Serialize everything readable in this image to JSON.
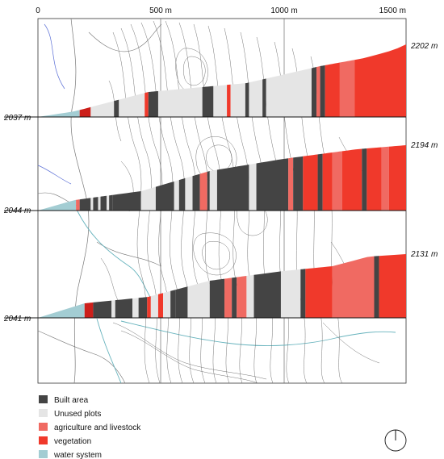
{
  "scale_ticks": [
    {
      "label": "0",
      "value": 0
    },
    {
      "label": "500 m",
      "value": 500
    },
    {
      "label": "1000 m",
      "value": 1000
    },
    {
      "label": "1500 m",
      "value": 1500
    }
  ],
  "categories": {
    "built": {
      "label": "Built area",
      "color": "#444444"
    },
    "unused": {
      "label": "Unused plots",
      "color": "#e5e5e5"
    },
    "agri": {
      "label": "agriculture and livestock",
      "color": "#f06a62"
    },
    "veg": {
      "label": "vegetation",
      "color": "#f0392b"
    },
    "water": {
      "label": "water system",
      "color": "#a3cdd3"
    }
  },
  "legend_order": [
    "built",
    "unused",
    "agri",
    "veg",
    "water"
  ],
  "sections": [
    {
      "left_elevation": "2037 m",
      "right_elevation": "2202 m",
      "segments": [
        {
          "start": 0,
          "end": 170,
          "type": "water"
        },
        {
          "start": 170,
          "end": 215,
          "type": "veg",
          "color": "#cc1f1a"
        },
        {
          "start": 215,
          "end": 310,
          "type": "unused"
        },
        {
          "start": 310,
          "end": 330,
          "type": "built"
        },
        {
          "start": 330,
          "end": 435,
          "type": "unused"
        },
        {
          "start": 435,
          "end": 450,
          "type": "veg"
        },
        {
          "start": 450,
          "end": 490,
          "type": "built"
        },
        {
          "start": 490,
          "end": 670,
          "type": "unused"
        },
        {
          "start": 670,
          "end": 715,
          "type": "built"
        },
        {
          "start": 715,
          "end": 770,
          "type": "unused"
        },
        {
          "start": 770,
          "end": 785,
          "type": "veg"
        },
        {
          "start": 785,
          "end": 845,
          "type": "unused"
        },
        {
          "start": 845,
          "end": 860,
          "type": "built"
        },
        {
          "start": 860,
          "end": 915,
          "type": "unused"
        },
        {
          "start": 915,
          "end": 930,
          "type": "built"
        },
        {
          "start": 930,
          "end": 1115,
          "type": "unused"
        },
        {
          "start": 1115,
          "end": 1135,
          "type": "built"
        },
        {
          "start": 1135,
          "end": 1150,
          "type": "agri"
        },
        {
          "start": 1150,
          "end": 1170,
          "type": "built"
        },
        {
          "start": 1170,
          "end": 1230,
          "type": "veg"
        },
        {
          "start": 1230,
          "end": 1290,
          "type": "agri"
        },
        {
          "start": 1290,
          "end": 1500,
          "type": "veg"
        }
      ]
    },
    {
      "left_elevation": "2044 m",
      "right_elevation": "2194 m",
      "segments": [
        {
          "start": 0,
          "end": 155,
          "type": "water"
        },
        {
          "start": 155,
          "end": 170,
          "type": "agri"
        },
        {
          "start": 170,
          "end": 215,
          "type": "built"
        },
        {
          "start": 215,
          "end": 225,
          "type": "unused"
        },
        {
          "start": 225,
          "end": 245,
          "type": "built"
        },
        {
          "start": 245,
          "end": 255,
          "type": "unused"
        },
        {
          "start": 255,
          "end": 280,
          "type": "built"
        },
        {
          "start": 280,
          "end": 290,
          "type": "unused"
        },
        {
          "start": 290,
          "end": 305,
          "type": "built"
        },
        {
          "start": 305,
          "end": 420,
          "type": "built"
        },
        {
          "start": 420,
          "end": 480,
          "type": "unused"
        },
        {
          "start": 480,
          "end": 555,
          "type": "built"
        },
        {
          "start": 555,
          "end": 575,
          "type": "unused"
        },
        {
          "start": 575,
          "end": 600,
          "type": "built"
        },
        {
          "start": 600,
          "end": 630,
          "type": "unused"
        },
        {
          "start": 630,
          "end": 660,
          "type": "built"
        },
        {
          "start": 660,
          "end": 690,
          "type": "agri"
        },
        {
          "start": 690,
          "end": 700,
          "type": "built"
        },
        {
          "start": 700,
          "end": 730,
          "type": "unused"
        },
        {
          "start": 730,
          "end": 860,
          "type": "built"
        },
        {
          "start": 860,
          "end": 890,
          "type": "unused"
        },
        {
          "start": 890,
          "end": 1020,
          "type": "built"
        },
        {
          "start": 1020,
          "end": 1040,
          "type": "agri"
        },
        {
          "start": 1040,
          "end": 1080,
          "type": "built"
        },
        {
          "start": 1080,
          "end": 1140,
          "type": "veg"
        },
        {
          "start": 1140,
          "end": 1160,
          "type": "built"
        },
        {
          "start": 1160,
          "end": 1200,
          "type": "veg"
        },
        {
          "start": 1200,
          "end": 1240,
          "type": "agri"
        },
        {
          "start": 1240,
          "end": 1320,
          "type": "veg"
        },
        {
          "start": 1320,
          "end": 1340,
          "type": "built"
        },
        {
          "start": 1340,
          "end": 1400,
          "type": "veg"
        },
        {
          "start": 1400,
          "end": 1430,
          "type": "agri"
        },
        {
          "start": 1430,
          "end": 1500,
          "type": "veg"
        }
      ]
    },
    {
      "left_elevation": "2041 m",
      "right_elevation": "2131 m",
      "segments": [
        {
          "start": 0,
          "end": 190,
          "type": "water"
        },
        {
          "start": 190,
          "end": 225,
          "type": "veg",
          "color": "#cc1f1a"
        },
        {
          "start": 225,
          "end": 300,
          "type": "built"
        },
        {
          "start": 300,
          "end": 315,
          "type": "unused"
        },
        {
          "start": 315,
          "end": 385,
          "type": "built"
        },
        {
          "start": 385,
          "end": 410,
          "type": "unused"
        },
        {
          "start": 410,
          "end": 445,
          "type": "built"
        },
        {
          "start": 445,
          "end": 460,
          "type": "veg"
        },
        {
          "start": 460,
          "end": 490,
          "type": "unused"
        },
        {
          "start": 490,
          "end": 510,
          "type": "veg"
        },
        {
          "start": 510,
          "end": 540,
          "type": "unused"
        },
        {
          "start": 540,
          "end": 560,
          "type": "built"
        },
        {
          "start": 560,
          "end": 610,
          "type": "built"
        },
        {
          "start": 610,
          "end": 700,
          "type": "unused"
        },
        {
          "start": 700,
          "end": 760,
          "type": "built"
        },
        {
          "start": 760,
          "end": 790,
          "type": "agri"
        },
        {
          "start": 790,
          "end": 810,
          "type": "built"
        },
        {
          "start": 810,
          "end": 850,
          "type": "agri"
        },
        {
          "start": 850,
          "end": 880,
          "type": "unused"
        },
        {
          "start": 880,
          "end": 990,
          "type": "built"
        },
        {
          "start": 990,
          "end": 1070,
          "type": "unused"
        },
        {
          "start": 1070,
          "end": 1090,
          "type": "built"
        },
        {
          "start": 1090,
          "end": 1200,
          "type": "veg"
        },
        {
          "start": 1200,
          "end": 1370,
          "type": "agri"
        },
        {
          "start": 1370,
          "end": 1390,
          "type": "built"
        },
        {
          "start": 1390,
          "end": 1500,
          "type": "veg"
        }
      ]
    }
  ]
}
